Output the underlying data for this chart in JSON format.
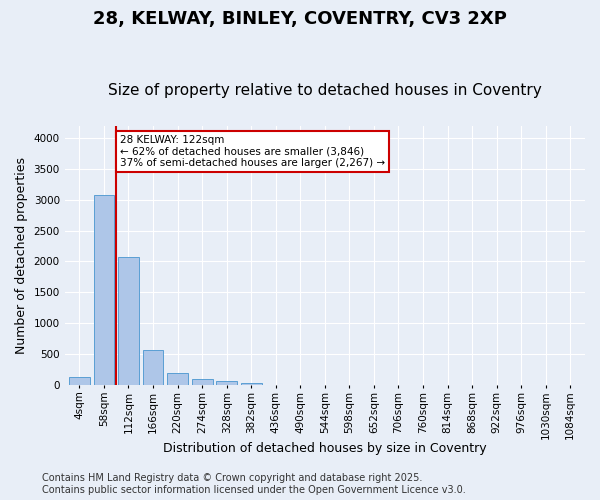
{
  "title_line1": "28, KELWAY, BINLEY, COVENTRY, CV3 2XP",
  "title_line2": "Size of property relative to detached houses in Coventry",
  "xlabel": "Distribution of detached houses by size in Coventry",
  "ylabel": "Number of detached properties",
  "categories": [
    "4sqm",
    "58sqm",
    "112sqm",
    "166sqm",
    "220sqm",
    "274sqm",
    "328sqm",
    "382sqm",
    "436sqm",
    "490sqm",
    "544sqm",
    "598sqm",
    "652sqm",
    "706sqm",
    "760sqm",
    "814sqm",
    "868sqm",
    "922sqm",
    "976sqm",
    "1030sqm",
    "1084sqm"
  ],
  "values": [
    130,
    3080,
    2080,
    570,
    200,
    90,
    60,
    40,
    0,
    0,
    0,
    0,
    0,
    0,
    0,
    0,
    0,
    0,
    0,
    0,
    0
  ],
  "bar_color": "#aec6e8",
  "bar_edge_color": "#5a9fd4",
  "vline_x_index": 2,
  "vline_color": "#cc0000",
  "annotation_text": "28 KELWAY: 122sqm\n← 62% of detached houses are smaller (3,846)\n37% of semi-detached houses are larger (2,267) →",
  "annotation_box_color": "#ffffff",
  "annotation_box_edgecolor": "#cc0000",
  "ylim": [
    0,
    4200
  ],
  "yticks": [
    0,
    500,
    1000,
    1500,
    2000,
    2500,
    3000,
    3500,
    4000
  ],
  "background_color": "#e8eef7",
  "grid_color": "#ffffff",
  "footnote_line1": "Contains HM Land Registry data © Crown copyright and database right 2025.",
  "footnote_line2": "Contains public sector information licensed under the Open Government Licence v3.0.",
  "title_fontsize": 13,
  "subtitle_fontsize": 11,
  "xlabel_fontsize": 9,
  "ylabel_fontsize": 9,
  "tick_fontsize": 7.5,
  "annotation_fontsize": 7.5,
  "footnote_fontsize": 7
}
